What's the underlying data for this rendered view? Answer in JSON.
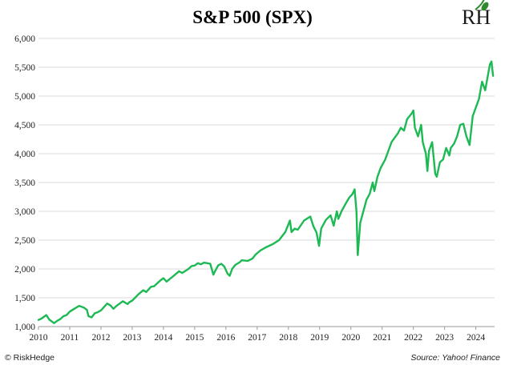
{
  "chart_data": {
    "type": "line",
    "title": "S&P 500 (SPX)",
    "xlabel": "",
    "ylabel": "",
    "xlim": [
      2010.0,
      2024.6
    ],
    "ylim": [
      1000,
      6000
    ],
    "x_ticks": [
      "2010",
      "2011",
      "2012",
      "2013",
      "2014",
      "2015",
      "2016",
      "2017",
      "2018",
      "2019",
      "2020",
      "2021",
      "2022",
      "2023",
      "2024"
    ],
    "y_ticks": [
      "1,000",
      "1,500",
      "2,000",
      "2,500",
      "3,000",
      "3,500",
      "4,000",
      "4,500",
      "5,000",
      "5,500",
      "6,000"
    ],
    "grid": "horizontal",
    "legend": "none",
    "series": [
      {
        "color": "#1db954",
        "x": [
          2010.0,
          2010.1,
          2010.25,
          2010.35,
          2010.45,
          2010.5,
          2010.6,
          2010.7,
          2010.8,
          2010.9,
          2011.0,
          2011.15,
          2011.3,
          2011.45,
          2011.55,
          2011.6,
          2011.7,
          2011.8,
          2011.9,
          2012.0,
          2012.2,
          2012.3,
          2012.4,
          2012.5,
          2012.7,
          2012.85,
          2012.9,
          2013.0,
          2013.2,
          2013.35,
          2013.45,
          2013.6,
          2013.7,
          2013.9,
          2014.0,
          2014.1,
          2014.3,
          2014.5,
          2014.6,
          2014.8,
          2014.9,
          2015.0,
          2015.1,
          2015.2,
          2015.3,
          2015.4,
          2015.5,
          2015.6,
          2015.65,
          2015.75,
          2015.85,
          2015.95,
          2016.05,
          2016.12,
          2016.2,
          2016.3,
          2016.45,
          2016.5,
          2016.7,
          2016.85,
          2016.95,
          2017.1,
          2017.3,
          2017.5,
          2017.7,
          2017.9,
          2018.05,
          2018.1,
          2018.2,
          2018.3,
          2018.5,
          2018.7,
          2018.8,
          2018.9,
          2018.98,
          2019.05,
          2019.2,
          2019.35,
          2019.45,
          2019.55,
          2019.6,
          2019.7,
          2019.85,
          2019.95,
          2020.05,
          2020.12,
          2020.18,
          2020.22,
          2020.3,
          2020.4,
          2020.5,
          2020.6,
          2020.7,
          2020.75,
          2020.85,
          2020.95,
          2021.1,
          2021.3,
          2021.5,
          2021.6,
          2021.7,
          2021.8,
          2021.95,
          2022.0,
          2022.05,
          2022.15,
          2022.25,
          2022.3,
          2022.4,
          2022.45,
          2022.5,
          2022.6,
          2022.7,
          2022.75,
          2022.85,
          2022.95,
          2023.05,
          2023.15,
          2023.2,
          2023.3,
          2023.4,
          2023.5,
          2023.6,
          2023.7,
          2023.8,
          2023.9,
          2024.0,
          2024.1,
          2024.2,
          2024.3,
          2024.4,
          2024.45,
          2024.5,
          2024.55
        ],
        "y": [
          1115,
          1140,
          1200,
          1120,
          1080,
          1060,
          1100,
          1130,
          1180,
          1200,
          1260,
          1310,
          1360,
          1330,
          1290,
          1180,
          1160,
          1230,
          1250,
          1280,
          1400,
          1370,
          1310,
          1360,
          1440,
          1390,
          1420,
          1450,
          1560,
          1630,
          1600,
          1690,
          1700,
          1800,
          1840,
          1780,
          1870,
          1960,
          1930,
          2000,
          2050,
          2060,
          2100,
          2080,
          2110,
          2100,
          2090,
          1900,
          1960,
          2060,
          2090,
          2040,
          1920,
          1880,
          2000,
          2070,
          2120,
          2150,
          2140,
          2180,
          2250,
          2320,
          2380,
          2430,
          2500,
          2640,
          2840,
          2640,
          2700,
          2680,
          2840,
          2910,
          2740,
          2630,
          2400,
          2700,
          2850,
          2930,
          2750,
          3000,
          2870,
          3000,
          3150,
          3240,
          3300,
          3380,
          3000,
          2240,
          2800,
          3000,
          3200,
          3300,
          3500,
          3350,
          3600,
          3750,
          3900,
          4200,
          4350,
          4450,
          4400,
          4600,
          4700,
          4750,
          4450,
          4300,
          4500,
          4200,
          4000,
          3700,
          4050,
          4200,
          3650,
          3600,
          3850,
          3900,
          4100,
          3970,
          4100,
          4170,
          4300,
          4500,
          4520,
          4300,
          4150,
          4650,
          4800,
          4950,
          5250,
          5100,
          5400,
          5550,
          5600,
          5350
        ]
      }
    ]
  },
  "footer": {
    "copyright": "© RiskHedge",
    "source": "Source: Yahoo! Finance"
  },
  "logo": {
    "letters": "RH",
    "accent_color": "#2e8b2e"
  }
}
